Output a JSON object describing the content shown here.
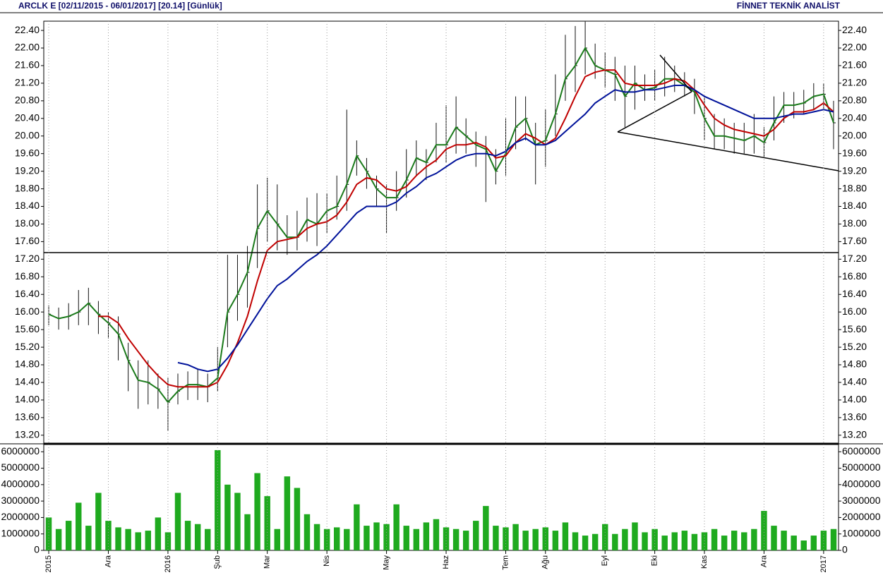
{
  "header": {
    "left": "ARCLK E  [02/11/2015 - 06/01/2017]  [20.14]  [Günlük]",
    "right": "FİNNET TEKNİK ANALİST"
  },
  "chart_data": [
    {
      "type": "ohlc",
      "bar_color": "#111111",
      "high": [
        16.15,
        16.1,
        16.2,
        16.5,
        16.55,
        16.25,
        16.0,
        15.9,
        15.3,
        14.9,
        14.9,
        14.6,
        14.5,
        14.6,
        14.65,
        14.7,
        14.6,
        15.2,
        17.3,
        17.3,
        17.5,
        18.9,
        19.05,
        18.9,
        18.2,
        18.3,
        18.6,
        18.7,
        18.7,
        19.1,
        20.6,
        19.9,
        19.5,
        19.1,
        18.9,
        19.2,
        19.7,
        19.9,
        19.7,
        20.3,
        20.7,
        20.9,
        20.4,
        20.1,
        20.0,
        19.7,
        20.4,
        20.9,
        20.9,
        20.3,
        20.6,
        21.4,
        22.3,
        22.5,
        22.6,
        22.1,
        21.9,
        21.8,
        21.6,
        21.6,
        21.4,
        21.5,
        21.8,
        21.6,
        21.45,
        21.3,
        20.9,
        20.5,
        20.4,
        20.3,
        20.3,
        20.5,
        20.2,
        20.9,
        21.0,
        21.0,
        21.05,
        21.2,
        21.2,
        20.8
      ],
      "low": [
        15.7,
        15.6,
        15.6,
        15.7,
        15.7,
        15.5,
        15.4,
        14.9,
        14.2,
        13.8,
        13.9,
        13.8,
        13.3,
        13.9,
        14.0,
        14.0,
        13.95,
        14.2,
        15.2,
        15.8,
        16.1,
        17.0,
        17.6,
        17.4,
        17.3,
        17.4,
        17.6,
        17.5,
        17.8,
        18.1,
        18.3,
        19.1,
        18.8,
        18.4,
        17.8,
        18.3,
        18.6,
        19.1,
        19.0,
        19.4,
        19.4,
        19.6,
        19.6,
        19.3,
        18.5,
        18.9,
        19.1,
        19.7,
        19.9,
        18.9,
        19.3,
        20.0,
        20.8,
        21.0,
        21.4,
        21.3,
        21.1,
        20.8,
        20.2,
        20.6,
        20.8,
        20.8,
        20.9,
        21.0,
        20.9,
        20.5,
        19.9,
        19.7,
        19.7,
        19.6,
        19.6,
        19.6,
        19.5,
        19.9,
        20.3,
        20.4,
        20.5,
        20.6,
        20.6,
        19.7
      ],
      "close": [
        15.95,
        15.85,
        15.9,
        16.0,
        16.2,
        15.95,
        15.75,
        15.5,
        14.9,
        14.45,
        14.4,
        14.25,
        13.95,
        14.2,
        14.35,
        14.35,
        14.3,
        14.5,
        16.0,
        16.4,
        16.9,
        17.9,
        18.3,
        18.0,
        17.7,
        17.7,
        18.1,
        18.0,
        18.3,
        18.4,
        18.9,
        19.55,
        19.2,
        18.8,
        18.6,
        18.6,
        19.0,
        19.5,
        19.4,
        19.8,
        19.8,
        20.2,
        20.0,
        19.8,
        19.7,
        19.2,
        19.6,
        20.2,
        20.4,
        19.8,
        19.9,
        20.5,
        21.3,
        21.6,
        22.0,
        21.6,
        21.5,
        21.4,
        20.9,
        21.2,
        21.05,
        21.1,
        21.3,
        21.3,
        21.15,
        21.0,
        20.4,
        20.0,
        20.0,
        19.95,
        19.9,
        20.0,
        19.85,
        20.3,
        20.7,
        20.7,
        20.75,
        20.9,
        20.95,
        20.3
      ],
      "series": [
        {
          "color": "#1a7a1a",
          "values": [
            15.95,
            15.85,
            15.9,
            16.0,
            16.2,
            15.95,
            15.75,
            15.5,
            14.9,
            14.45,
            14.4,
            14.25,
            13.95,
            14.2,
            14.35,
            14.35,
            14.3,
            14.5,
            16.0,
            16.4,
            16.9,
            17.9,
            18.3,
            18.0,
            17.7,
            17.7,
            18.1,
            18.0,
            18.3,
            18.4,
            18.9,
            19.55,
            19.2,
            18.8,
            18.6,
            18.6,
            19.0,
            19.5,
            19.4,
            19.8,
            19.8,
            20.2,
            20.0,
            19.8,
            19.7,
            19.2,
            19.6,
            20.2,
            20.4,
            19.8,
            19.9,
            20.5,
            21.3,
            21.6,
            22.0,
            21.6,
            21.5,
            21.4,
            20.9,
            21.2,
            21.05,
            21.1,
            21.3,
            21.3,
            21.15,
            21.0,
            20.4,
            20.0,
            20.0,
            19.95,
            19.9,
            20.0,
            19.85,
            20.3,
            20.7,
            20.7,
            20.75,
            20.9,
            20.95,
            20.3
          ]
        },
        {
          "color": "#c00000",
          "values": [
            null,
            null,
            null,
            null,
            null,
            15.9,
            15.9,
            15.75,
            15.4,
            15.1,
            14.8,
            14.55,
            14.35,
            14.3,
            14.3,
            14.3,
            14.3,
            14.4,
            14.8,
            15.3,
            15.9,
            16.7,
            17.4,
            17.6,
            17.65,
            17.7,
            17.9,
            18.0,
            18.05,
            18.2,
            18.5,
            18.9,
            19.05,
            19.0,
            18.8,
            18.75,
            18.85,
            19.1,
            19.3,
            19.45,
            19.7,
            19.8,
            19.8,
            19.85,
            19.75,
            19.5,
            19.55,
            19.85,
            20.05,
            19.95,
            19.8,
            19.95,
            20.4,
            20.9,
            21.35,
            21.45,
            21.5,
            21.5,
            21.2,
            21.15,
            21.15,
            21.15,
            21.2,
            21.3,
            21.25,
            21.05,
            20.7,
            20.4,
            20.25,
            20.15,
            20.1,
            20.05,
            20.0,
            20.15,
            20.4,
            20.55,
            20.55,
            20.6,
            20.75,
            20.55
          ]
        },
        {
          "color": "#00129a",
          "values": [
            null,
            null,
            null,
            null,
            null,
            null,
            null,
            null,
            null,
            null,
            null,
            null,
            null,
            14.85,
            14.8,
            14.7,
            14.65,
            14.7,
            14.95,
            15.25,
            15.6,
            15.95,
            16.3,
            16.6,
            16.75,
            16.95,
            17.15,
            17.3,
            17.5,
            17.75,
            18.0,
            18.25,
            18.4,
            18.4,
            18.4,
            18.5,
            18.7,
            18.85,
            19.05,
            19.15,
            19.3,
            19.45,
            19.55,
            19.6,
            19.6,
            19.55,
            19.65,
            19.85,
            19.95,
            19.8,
            19.8,
            19.9,
            20.1,
            20.3,
            20.5,
            20.75,
            20.9,
            21.05,
            21.0,
            21.0,
            21.05,
            21.05,
            21.1,
            21.15,
            21.15,
            21.05,
            20.9,
            20.8,
            20.7,
            20.6,
            20.5,
            20.4,
            20.4,
            20.4,
            20.45,
            20.5,
            20.5,
            20.55,
            20.6,
            20.55
          ]
        }
      ],
      "ylim": [
        13.02,
        22.61
      ],
      "yticks": [
        {
          "value": 13.2,
          "label": "13.20"
        },
        {
          "value": 13.6,
          "label": "13.60"
        },
        {
          "value": 14.0,
          "label": "14.00"
        },
        {
          "value": 14.4,
          "label": "14.40"
        },
        {
          "value": 14.8,
          "label": "14.80"
        },
        {
          "value": 15.2,
          "label": "15.20"
        },
        {
          "value": 15.6,
          "label": "15.60"
        },
        {
          "value": 16.0,
          "label": "16.00"
        },
        {
          "value": 16.4,
          "label": "16.40"
        },
        {
          "value": 16.8,
          "label": "16.80"
        },
        {
          "value": 17.2,
          "label": "17.20"
        },
        {
          "value": 17.6,
          "label": "17.60"
        },
        {
          "value": 18.0,
          "label": "18.00"
        },
        {
          "value": 18.4,
          "label": "18.40"
        },
        {
          "value": 18.8,
          "label": "18.80"
        },
        {
          "value": 19.2,
          "label": "19.20"
        },
        {
          "value": 19.6,
          "label": "19.60"
        },
        {
          "value": 20.0,
          "label": "20.00"
        },
        {
          "value": 20.4,
          "label": "20.40"
        },
        {
          "value": 20.8,
          "label": "20.80"
        },
        {
          "value": 21.2,
          "label": "21.20"
        },
        {
          "value": 21.6,
          "label": "21.60"
        },
        {
          "value": 22.0,
          "label": "22.00"
        },
        {
          "value": 22.4,
          "label": "22.40"
        }
      ]
    },
    {
      "type": "bar",
      "color": "#1faa1f",
      "categories": [
        "2015",
        null,
        null,
        null,
        null,
        null,
        "Ara",
        null,
        null,
        null,
        null,
        null,
        "2016",
        null,
        null,
        null,
        null,
        "Şub",
        null,
        null,
        null,
        null,
        "Mar",
        null,
        null,
        null,
        null,
        null,
        "Nis",
        null,
        null,
        null,
        null,
        null,
        "May",
        null,
        null,
        null,
        null,
        null,
        "Haz",
        null,
        null,
        null,
        null,
        null,
        "Tem",
        null,
        null,
        null,
        "Ağu",
        null,
        null,
        null,
        null,
        null,
        "Eyl",
        null,
        null,
        null,
        null,
        "Eki",
        null,
        null,
        null,
        null,
        "Kas",
        null,
        null,
        null,
        null,
        null,
        "Ara",
        null,
        null,
        null,
        null,
        null,
        "2017",
        null
      ],
      "values": [
        2000000,
        1300000,
        1800000,
        2900000,
        1500000,
        3500000,
        1800000,
        1400000,
        1300000,
        1100000,
        1200000,
        2000000,
        1100000,
        3500000,
        1800000,
        1600000,
        1300000,
        6100000,
        4000000,
        3500000,
        2200000,
        4700000,
        3300000,
        1300000,
        4500000,
        3800000,
        2200000,
        1600000,
        1300000,
        1400000,
        1300000,
        2800000,
        1500000,
        1700000,
        1600000,
        2800000,
        1500000,
        1300000,
        1700000,
        1900000,
        1400000,
        1300000,
        1200000,
        1800000,
        2700000,
        1500000,
        1400000,
        1600000,
        1200000,
        1300000,
        1400000,
        1200000,
        1700000,
        1100000,
        900000,
        1000000,
        1600000,
        1000000,
        1300000,
        1700000,
        1100000,
        1300000,
        900000,
        1100000,
        1200000,
        1000000,
        1100000,
        1300000,
        900000,
        1200000,
        1100000,
        1300000,
        2400000,
        1500000,
        1200000,
        900000,
        600000,
        900000,
        1200000,
        1300000
      ],
      "ylim": [
        0,
        6440000
      ],
      "yticks": [
        0,
        1000000,
        2000000,
        3000000,
        4000000,
        5000000,
        6000000
      ]
    }
  ]
}
